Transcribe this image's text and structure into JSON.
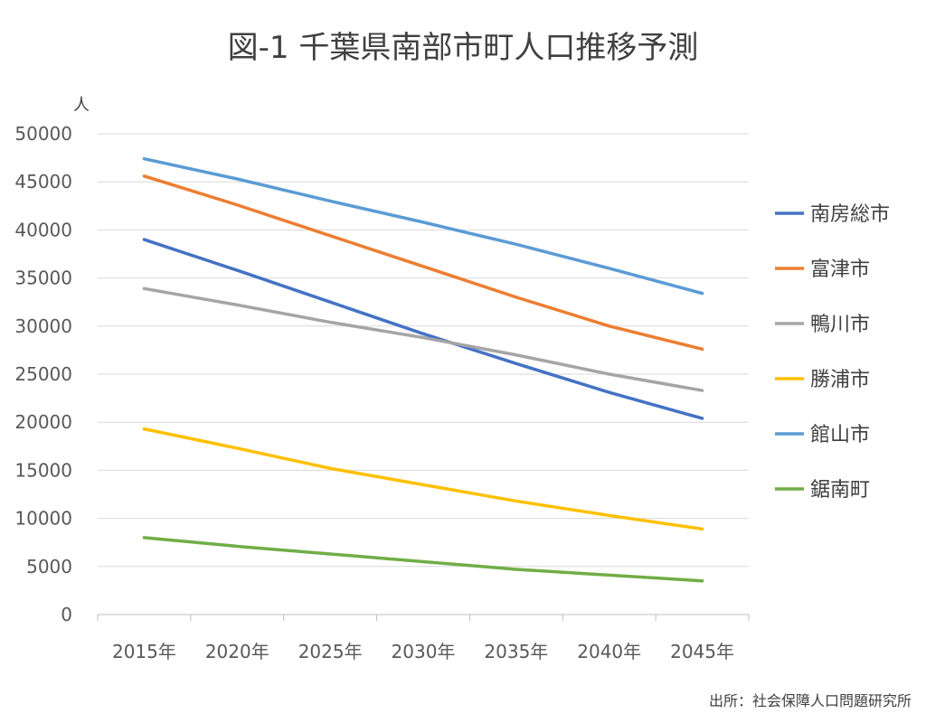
{
  "chart_data": {
    "type": "line",
    "title": "図-1 千葉県南部市町人口推移予測",
    "ylabel": "人",
    "source": "出所：社会保障人口問題研究所",
    "categories": [
      "2015年",
      "2020年",
      "2025年",
      "2030年",
      "2035年",
      "2040年",
      "2045年"
    ],
    "ylim": [
      0,
      50000
    ],
    "yticks": [
      0,
      5000,
      10000,
      15000,
      20000,
      25000,
      30000,
      35000,
      40000,
      45000,
      50000
    ],
    "grid": true,
    "legend_position": "right",
    "series": [
      {
        "name": "南房総市",
        "color": "#4472C4",
        "values": [
          39000,
          35800,
          32500,
          29200,
          26100,
          23100,
          20400
        ]
      },
      {
        "name": "富津市",
        "color": "#ED7D31",
        "values": [
          45600,
          42600,
          39400,
          36200,
          33000,
          30000,
          27600
        ]
      },
      {
        "name": "鴨川市",
        "color": "#A5A5A5",
        "values": [
          33900,
          32200,
          30400,
          28800,
          27000,
          25000,
          23300
        ]
      },
      {
        "name": "勝浦市",
        "color": "#FFC000",
        "values": [
          19300,
          17300,
          15200,
          13500,
          11800,
          10300,
          8900
        ]
      },
      {
        "name": "館山市",
        "color": "#5B9BD5",
        "values": [
          47400,
          45300,
          43000,
          40800,
          38500,
          36000,
          33400
        ]
      },
      {
        "name": "鋸南町",
        "color": "#70AD47",
        "values": [
          8000,
          7100,
          6300,
          5500,
          4700,
          4100,
          3500
        ]
      }
    ]
  }
}
